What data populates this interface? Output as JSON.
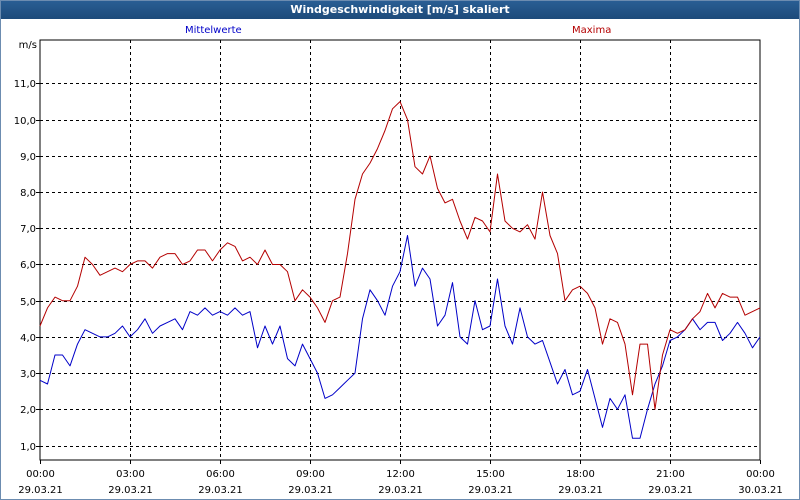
{
  "window": {
    "title": "Windgeschwindigkeit [m/s] skaliert"
  },
  "colors": {
    "series_mean": "#0000c8",
    "series_max": "#b40000",
    "grid": "#000000",
    "titlebar": "#1d4a7a"
  },
  "chart_data": {
    "type": "line",
    "title": "Windgeschwindigkeit [m/s] skaliert",
    "ylabel": "m/s",
    "xlabel": "",
    "ylim": [
      0.6,
      12.2
    ],
    "grid": true,
    "legend": "top",
    "y_ticks": [
      "1,0",
      "2,0",
      "3,0",
      "4,0",
      "5,0",
      "6,0",
      "7,0",
      "8,0",
      "9,0",
      "10,0",
      "11,0"
    ],
    "x_ticks": [
      {
        "time": "00:00",
        "date": "29.03.21"
      },
      {
        "time": "03:00",
        "date": "29.03.21"
      },
      {
        "time": "06:00",
        "date": "29.03.21"
      },
      {
        "time": "09:00",
        "date": "29.03.21"
      },
      {
        "time": "12:00",
        "date": "29.03.21"
      },
      {
        "time": "15:00",
        "date": "29.03.21"
      },
      {
        "time": "18:00",
        "date": "29.03.21"
      },
      {
        "time": "21:00",
        "date": "29.03.21"
      },
      {
        "time": "00:00",
        "date": "30.03.21"
      }
    ],
    "x_hours": [
      0.0,
      0.25,
      0.5,
      0.75,
      1.0,
      1.25,
      1.5,
      1.75,
      2.0,
      2.25,
      2.5,
      2.75,
      3.0,
      3.25,
      3.5,
      3.75,
      4.0,
      4.25,
      4.5,
      4.75,
      5.0,
      5.25,
      5.5,
      5.75,
      6.0,
      6.25,
      6.5,
      6.75,
      7.0,
      7.25,
      7.5,
      7.75,
      8.0,
      8.25,
      8.5,
      8.75,
      9.0,
      9.25,
      9.5,
      9.75,
      10.0,
      10.25,
      10.5,
      10.75,
      11.0,
      11.25,
      11.5,
      11.75,
      12.0,
      12.25,
      12.5,
      12.75,
      13.0,
      13.25,
      13.5,
      13.75,
      14.0,
      14.25,
      14.5,
      14.75,
      15.0,
      15.25,
      15.5,
      15.75,
      16.0,
      16.25,
      16.5,
      16.75,
      17.0,
      17.25,
      17.5,
      17.75,
      18.0,
      18.25,
      18.5,
      18.75,
      19.0,
      19.25,
      19.5,
      19.75,
      20.0,
      20.25,
      20.5,
      20.75,
      21.0,
      21.25,
      21.5,
      21.75,
      22.0,
      22.25,
      22.5,
      22.75,
      23.0,
      23.25,
      23.5,
      23.75,
      24.0
    ],
    "series": [
      {
        "name": "Mittelwerte",
        "color": "#0000c8",
        "values": [
          2.8,
          2.7,
          3.5,
          3.5,
          3.2,
          3.8,
          4.2,
          4.1,
          4.0,
          4.0,
          4.1,
          4.3,
          4.0,
          4.2,
          4.5,
          4.1,
          4.3,
          4.4,
          4.5,
          4.2,
          4.7,
          4.6,
          4.8,
          4.6,
          4.7,
          4.6,
          4.8,
          4.6,
          4.7,
          3.7,
          4.3,
          3.8,
          4.3,
          3.4,
          3.2,
          3.8,
          3.4,
          3.0,
          2.3,
          2.4,
          2.6,
          2.8,
          3.0,
          4.5,
          5.3,
          5.0,
          4.6,
          5.4,
          5.8,
          6.8,
          5.4,
          5.9,
          5.6,
          4.3,
          4.6,
          5.5,
          4.0,
          3.8,
          5.0,
          4.2,
          4.3,
          5.6,
          4.3,
          3.8,
          4.8,
          4.0,
          3.8,
          3.9,
          3.3,
          2.7,
          3.1,
          2.4,
          2.5,
          3.1,
          2.3,
          1.5,
          2.3,
          2.0,
          2.4,
          1.2,
          1.2,
          2.0,
          2.7,
          3.2,
          3.9,
          4.0,
          4.2,
          4.5,
          4.2,
          4.4,
          4.4,
          3.9,
          4.1,
          4.4,
          4.1,
          3.7,
          4.0
        ]
      },
      {
        "name": "Maxima",
        "color": "#b40000",
        "values": [
          4.3,
          4.8,
          5.1,
          5.0,
          5.0,
          5.4,
          6.2,
          6.0,
          5.7,
          5.8,
          5.9,
          5.8,
          6.0,
          6.1,
          6.1,
          5.9,
          6.2,
          6.3,
          6.3,
          6.0,
          6.1,
          6.4,
          6.4,
          6.1,
          6.4,
          6.6,
          6.5,
          6.1,
          6.2,
          6.0,
          6.4,
          6.0,
          6.0,
          5.8,
          5.0,
          5.3,
          5.1,
          4.8,
          4.4,
          5.0,
          5.1,
          6.3,
          7.8,
          8.5,
          8.8,
          9.2,
          9.7,
          10.3,
          10.5,
          10.0,
          8.7,
          8.5,
          9.0,
          8.1,
          7.7,
          7.8,
          7.2,
          6.7,
          7.3,
          7.2,
          6.9,
          8.5,
          7.2,
          7.0,
          6.9,
          7.1,
          6.7,
          8.0,
          6.8,
          6.3,
          5.0,
          5.3,
          5.4,
          5.2,
          4.8,
          3.8,
          4.5,
          4.4,
          3.8,
          2.4,
          3.8,
          3.8,
          2.0,
          3.5,
          4.2,
          4.1,
          4.2,
          4.5,
          4.7,
          5.2,
          4.8,
          5.2,
          5.1,
          5.1,
          4.6,
          4.7,
          4.8
        ]
      }
    ]
  }
}
